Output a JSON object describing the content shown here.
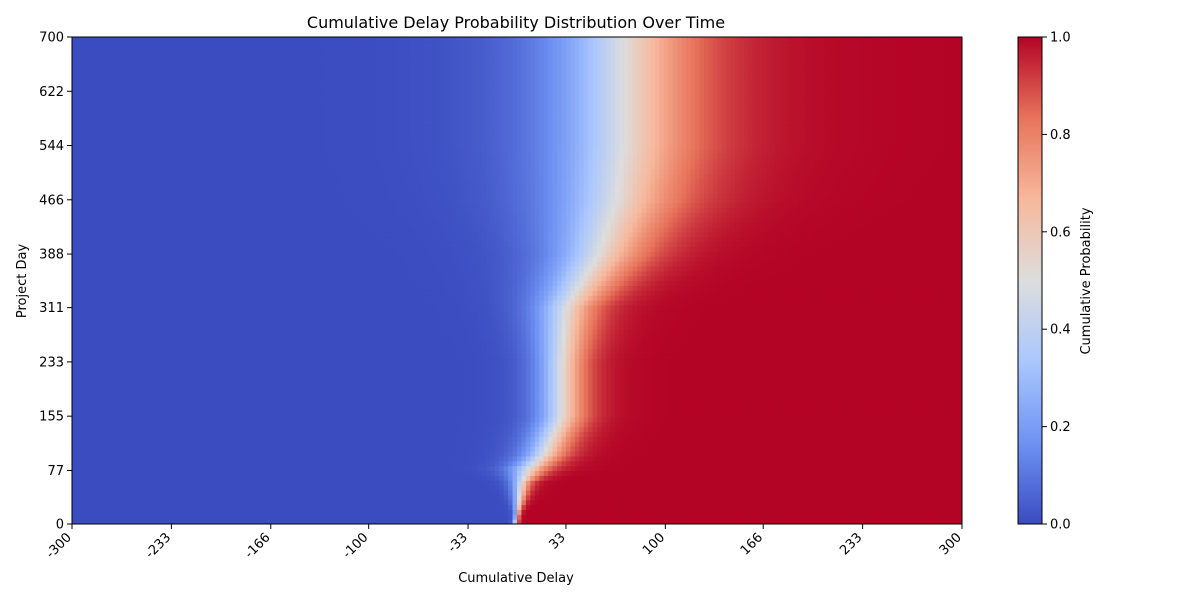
{
  "chart_data": {
    "type": "heatmap",
    "title": "Cumulative Delay Probability Distribution Over Time",
    "xlabel": "Cumulative Delay",
    "ylabel": "Project Day",
    "xlim": [
      -300,
      300
    ],
    "ylim": [
      0,
      700
    ],
    "x_tick_labels": [
      "-300",
      "-233",
      "-166",
      "-100",
      "-33",
      "33",
      "100",
      "166",
      "233",
      "300"
    ],
    "y_tick_labels": [
      "0",
      "77",
      "155",
      "233",
      "311",
      "388",
      "466",
      "544",
      "622",
      "700"
    ],
    "colormap": "coolwarm",
    "colormap_colors": [
      "#3b4cc0",
      "#6f92f3",
      "#aac7fd",
      "#dddddd",
      "#f7b89c",
      "#e7745b",
      "#b40426"
    ],
    "colorbar": {
      "label": "Cumulative Probability",
      "range": [
        0,
        1
      ],
      "tick_labels": [
        "0.0",
        "0.2",
        "0.4",
        "0.6",
        "0.8",
        "1.0"
      ]
    },
    "row_profiles": [
      {
        "project_day": 0,
        "delay_at_half_probability": -1,
        "spread": 1
      },
      {
        "project_day": 15,
        "delay_at_half_probability": 0,
        "spread": 1
      },
      {
        "project_day": 60,
        "delay_at_half_probability": 3,
        "spread": 4
      },
      {
        "project_day": 80,
        "delay_at_half_probability": 8,
        "spread": 8
      },
      {
        "project_day": 100,
        "delay_at_half_probability": 18,
        "spread": 9
      },
      {
        "project_day": 155,
        "delay_at_half_probability": 30,
        "spread": 10
      },
      {
        "project_day": 233,
        "delay_at_half_probability": 30,
        "spread": 10
      },
      {
        "project_day": 311,
        "delay_at_half_probability": 33,
        "spread": 13
      },
      {
        "project_day": 388,
        "delay_at_half_probability": 55,
        "spread": 20
      },
      {
        "project_day": 466,
        "delay_at_half_probability": 67,
        "spread": 27
      },
      {
        "project_day": 544,
        "delay_at_half_probability": 72,
        "spread": 30
      },
      {
        "project_day": 700,
        "delay_at_half_probability": 72,
        "spread": 30
      }
    ]
  }
}
